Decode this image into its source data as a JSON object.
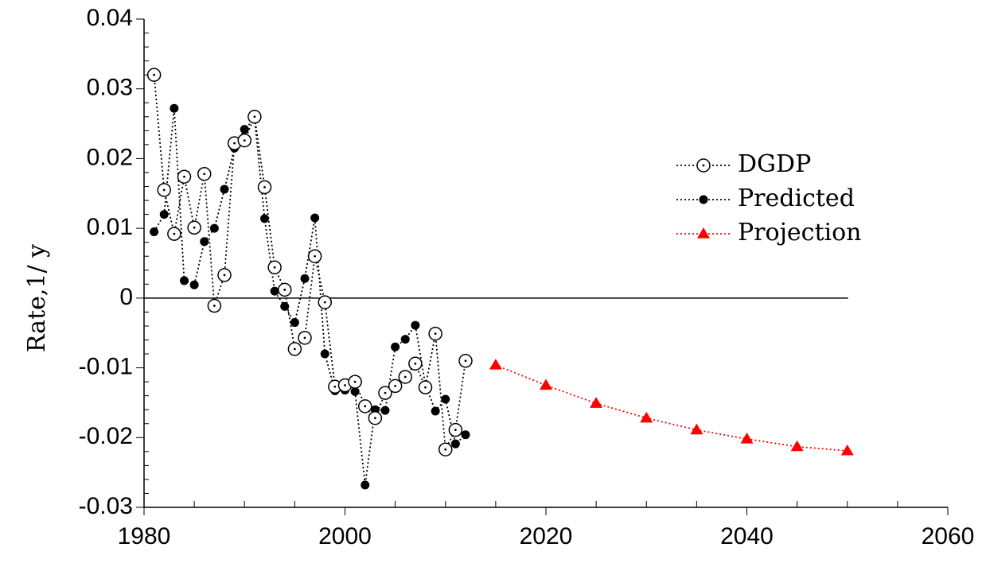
{
  "chart_data": {
    "type": "scatter",
    "title": "",
    "xlabel": "",
    "ylabel": "Rate,1/ y",
    "xlim": [
      1980,
      2060
    ],
    "ylim": [
      -0.03,
      0.04
    ],
    "x_ticks": [
      "1980",
      "2000",
      "2020",
      "2040",
      "2060"
    ],
    "y_ticks": [
      "-0.03",
      "-0.02",
      "-0.01",
      "0",
      "0.01",
      "0.02",
      "0.03",
      "0.04"
    ],
    "x_tick_values": [
      1980,
      2000,
      2020,
      2040,
      2060
    ],
    "y_tick_values": [
      -0.03,
      -0.02,
      -0.01,
      0,
      0.01,
      0.02,
      0.03,
      0.04
    ],
    "grid": false,
    "zero_line": true,
    "legend_position": "right",
    "series": [
      {
        "name": "DGDP",
        "marker": "open-circle",
        "line": "dotted",
        "color": "#000000",
        "x": [
          1981,
          1982,
          1983,
          1984,
          1985,
          1986,
          1987,
          1988,
          1989,
          1990,
          1991,
          1992,
          1993,
          1994,
          1995,
          1996,
          1997,
          1998,
          1999,
          2000,
          2001,
          2002,
          2003,
          2004,
          2005,
          2006,
          2007,
          2008,
          2009,
          2010,
          2011,
          2012
        ],
        "y": [
          0.032,
          0.0155,
          0.0092,
          0.0174,
          0.0101,
          0.0178,
          -0.0011,
          0.0033,
          0.0222,
          0.0226,
          0.026,
          0.0159,
          0.0044,
          0.0012,
          -0.0073,
          -0.0057,
          0.006,
          -0.0006,
          -0.0127,
          -0.0125,
          -0.012,
          -0.0155,
          -0.0172,
          -0.0136,
          -0.0126,
          -0.0113,
          -0.0094,
          -0.0128,
          -0.0051,
          -0.0217,
          -0.0189,
          -0.009
        ]
      },
      {
        "name": "Predicted",
        "marker": "filled-circle",
        "line": "dotted",
        "color": "#000000",
        "x": [
          1981,
          1982,
          1983,
          1984,
          1985,
          1986,
          1987,
          1988,
          1989,
          1990,
          1991,
          1992,
          1993,
          1994,
          1995,
          1996,
          1997,
          1998,
          1999,
          2000,
          2001,
          2002,
          2003,
          2004,
          2005,
          2006,
          2007,
          2008,
          2009,
          2010,
          2011,
          2012
        ],
        "y": [
          0.0095,
          0.012,
          0.0272,
          0.0025,
          0.0019,
          0.0081,
          0.01,
          0.0156,
          0.0215,
          0.0242,
          0.0257,
          0.0114,
          0.001,
          -0.0012,
          -0.0035,
          0.0028,
          0.0115,
          -0.008,
          -0.0133,
          -0.0132,
          -0.0134,
          -0.0268,
          -0.016,
          -0.0161,
          -0.007,
          -0.0059,
          -0.0039,
          -0.0124,
          -0.0162,
          -0.0145,
          -0.0209,
          -0.0196
        ]
      },
      {
        "name": "Projection",
        "marker": "triangle",
        "line": "dotted",
        "color": "#ff0000",
        "x": [
          2015,
          2020,
          2025,
          2030,
          2035,
          2040,
          2045,
          2050
        ],
        "y": [
          -0.0096,
          -0.0125,
          -0.0151,
          -0.0172,
          -0.0189,
          -0.0202,
          -0.0213,
          -0.0219
        ]
      }
    ]
  }
}
